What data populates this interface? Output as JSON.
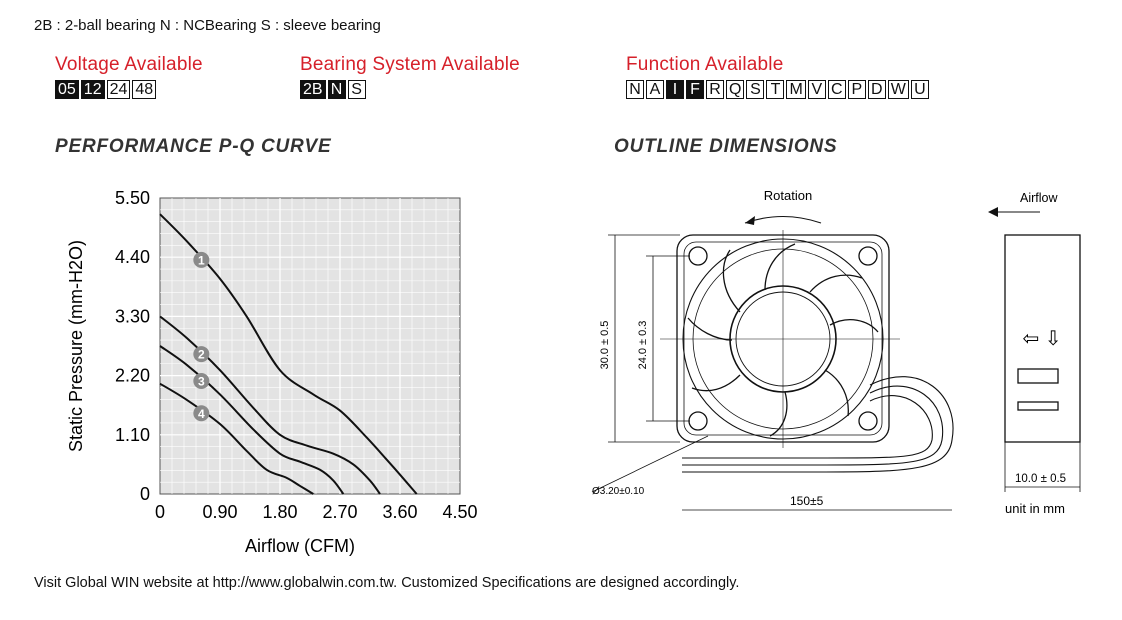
{
  "legend": "2B : 2-ball bearing    N : NCBearing    S : sleeve bearing",
  "voltage": {
    "title": "Voltage Available",
    "codes": [
      {
        "label": "05",
        "active": true
      },
      {
        "label": "12",
        "active": true
      },
      {
        "label": "24",
        "active": false
      },
      {
        "label": "48",
        "active": false
      }
    ]
  },
  "bearing": {
    "title": "Bearing System Available",
    "codes": [
      {
        "label": "2B",
        "active": true
      },
      {
        "label": "N",
        "active": true
      },
      {
        "label": "S",
        "active": false
      }
    ]
  },
  "function": {
    "title": "Function Available",
    "codes": [
      {
        "label": "N",
        "active": false
      },
      {
        "label": "A",
        "active": false
      },
      {
        "label": "I",
        "active": true
      },
      {
        "label": "F",
        "active": true
      },
      {
        "label": "R",
        "active": false
      },
      {
        "label": "Q",
        "active": false
      },
      {
        "label": "S",
        "active": false
      },
      {
        "label": "T",
        "active": false
      },
      {
        "label": "M",
        "active": false
      },
      {
        "label": "V",
        "active": false
      },
      {
        "label": "C",
        "active": false
      },
      {
        "label": "P",
        "active": false
      },
      {
        "label": "D",
        "active": false
      },
      {
        "label": "W",
        "active": false
      },
      {
        "label": "U",
        "active": false
      }
    ]
  },
  "headings": {
    "pq": "PERFORMANCE P-Q CURVE",
    "outline": "OUTLINE DIMENSIONS"
  },
  "chart_data": {
    "type": "line",
    "title": "PERFORMANCE P-Q CURVE",
    "xlabel": "Airflow (CFM)",
    "ylabel": "Static Pressure (mm-H2O)",
    "xlim": [
      0,
      4.5
    ],
    "ylim": [
      0,
      5.5
    ],
    "xticks": [
      "0",
      "0.90",
      "1.80",
      "2.70",
      "3.60",
      "4.50"
    ],
    "yticks": [
      "0",
      "1.10",
      "2.20",
      "3.30",
      "4.40",
      "5.50"
    ],
    "grid": true,
    "series": [
      {
        "name": "1",
        "points": [
          [
            0,
            5.2
          ],
          [
            0.4,
            4.7
          ],
          [
            0.9,
            4.0
          ],
          [
            1.3,
            3.3
          ],
          [
            1.8,
            2.3
          ],
          [
            2.3,
            1.85
          ],
          [
            2.7,
            1.55
          ],
          [
            3.1,
            1.05
          ],
          [
            3.5,
            0.5
          ],
          [
            3.85,
            0
          ]
        ]
      },
      {
        "name": "2",
        "points": [
          [
            0,
            3.3
          ],
          [
            0.4,
            2.9
          ],
          [
            0.9,
            2.3
          ],
          [
            1.4,
            1.6
          ],
          [
            1.8,
            1.1
          ],
          [
            2.2,
            0.9
          ],
          [
            2.6,
            0.75
          ],
          [
            2.9,
            0.55
          ],
          [
            3.15,
            0.25
          ],
          [
            3.3,
            0
          ]
        ]
      },
      {
        "name": "3",
        "points": [
          [
            0,
            2.75
          ],
          [
            0.4,
            2.4
          ],
          [
            0.9,
            1.85
          ],
          [
            1.4,
            1.2
          ],
          [
            1.8,
            0.75
          ],
          [
            2.1,
            0.6
          ],
          [
            2.4,
            0.45
          ],
          [
            2.6,
            0.25
          ],
          [
            2.75,
            0
          ]
        ]
      },
      {
        "name": "4",
        "points": [
          [
            0,
            2.05
          ],
          [
            0.4,
            1.75
          ],
          [
            0.9,
            1.3
          ],
          [
            1.3,
            0.8
          ],
          [
            1.6,
            0.45
          ],
          [
            1.9,
            0.3
          ],
          [
            2.1,
            0.15
          ],
          [
            2.3,
            0
          ]
        ]
      }
    ],
    "labels": [
      {
        "text": "1",
        "x": 0.62,
        "y": 4.35
      },
      {
        "text": "2",
        "x": 0.62,
        "y": 2.6
      },
      {
        "text": "3",
        "x": 0.62,
        "y": 2.1
      },
      {
        "text": "4",
        "x": 0.62,
        "y": 1.5
      }
    ]
  },
  "outline": {
    "rotation": "Rotation",
    "airflow": "Airflow",
    "dim_outer": "30.0 ± 0.5",
    "dim_inner": "24.0 ± 0.3",
    "hole": "Ø3.20±0.10",
    "cable": "150±5",
    "thickness": "10.0 ± 0.5",
    "unit": "unit in mm",
    "arrow_glyphs": "⇦ ⇩"
  },
  "footer": "Visit Global WIN website at http://www.globalwin.com.tw. Customized Specifications are designed accordingly."
}
